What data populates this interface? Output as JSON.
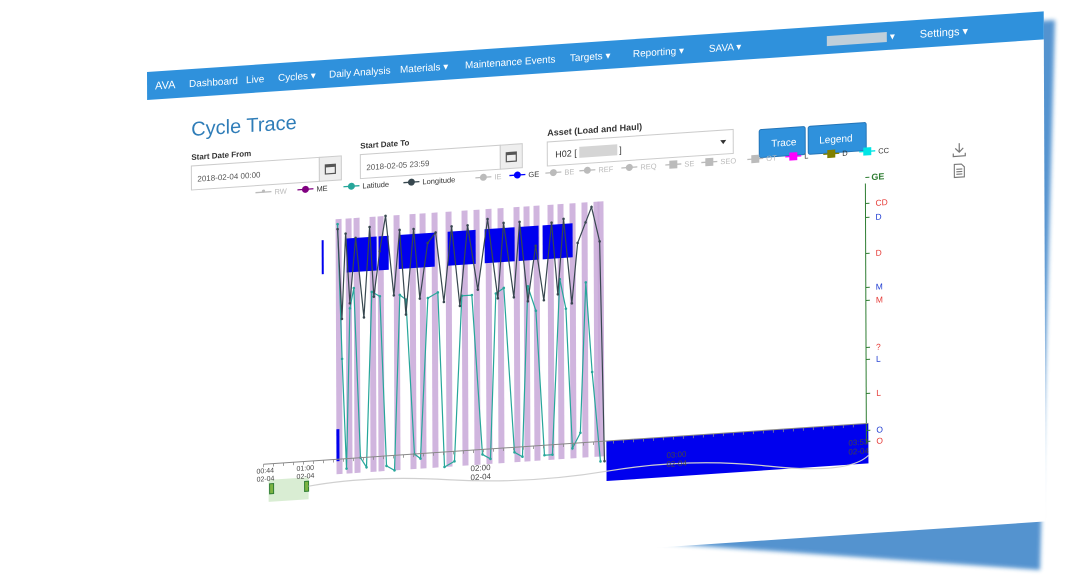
{
  "navbar": {
    "brand": "AVA",
    "items": [
      {
        "label": "Dashboard"
      },
      {
        "label": "Live"
      },
      {
        "label": "Cycles ▾"
      },
      {
        "label": "Daily Analysis"
      },
      {
        "label": "Materials ▾"
      },
      {
        "label": "Maintenance Events"
      },
      {
        "label": "Targets ▾"
      },
      {
        "label": "Reporting ▾"
      },
      {
        "label": "SAVA ▾"
      }
    ],
    "user_caret": "▾",
    "settings": "Settings ▾"
  },
  "page": {
    "title": "Cycle Trace"
  },
  "form": {
    "start_from_label": "Start Date From",
    "start_from_value": "2018-02-04 00:00",
    "start_to_label": "Start Date To",
    "start_to_value": "2018-02-05 23:59",
    "asset_label": "Asset (Load and Haul)",
    "asset_value": "H02 [",
    "asset_value_suffix": "]",
    "trace_button": "Trace",
    "legend_button": "Legend"
  },
  "legend": [
    {
      "label": "RW",
      "color": "#bbbbbb",
      "active": false,
      "marker": "pin"
    },
    {
      "label": "ME",
      "color": "#800080",
      "active": true,
      "marker": "circle"
    },
    {
      "label": "Latitude",
      "color": "#26a69a",
      "active": true,
      "marker": "circle"
    },
    {
      "label": "Longitude",
      "color": "#37474f",
      "active": true,
      "marker": "circle"
    },
    {
      "label": "IE",
      "color": "#bbbbbb",
      "active": false,
      "marker": "circle"
    },
    {
      "label": "GE",
      "color": "#0000ff",
      "active": true,
      "marker": "circle"
    },
    {
      "label": "BE",
      "color": "#bbbbbb",
      "active": false,
      "marker": "circle"
    },
    {
      "label": "REF",
      "color": "#bbbbbb",
      "active": false,
      "marker": "circle"
    },
    {
      "label": "REQ",
      "color": "#bbbbbb",
      "active": false,
      "marker": "circle"
    },
    {
      "label": "SE",
      "color": "#bbbbbb",
      "active": false,
      "marker": "square"
    },
    {
      "label": "SEO",
      "color": "#bbbbbb",
      "active": false,
      "marker": "square"
    },
    {
      "label": "OT",
      "color": "#bbbbbb",
      "active": false,
      "marker": "square"
    },
    {
      "label": "L",
      "color": "#ff00ff",
      "active": true,
      "marker": "square"
    },
    {
      "label": "D",
      "color": "#808000",
      "active": true,
      "marker": "square"
    },
    {
      "label": "CC",
      "color": "#00e5e5",
      "active": true,
      "marker": "square"
    }
  ],
  "right_axis": [
    {
      "label": "GE",
      "color": "#2e7d32"
    },
    {
      "label": "CD",
      "color": "#e53935"
    },
    {
      "label": "D",
      "color": "#1e3bd1"
    },
    {
      "label": "D",
      "color": "#e53935"
    },
    {
      "label": "M",
      "color": "#1e3bd1"
    },
    {
      "label": "M",
      "color": "#e53935"
    },
    {
      "label": "?",
      "color": "#e53935"
    },
    {
      "label": "L",
      "color": "#1e3bd1"
    },
    {
      "label": "L",
      "color": "#e53935"
    },
    {
      "label": "O",
      "color": "#1e3bd1"
    },
    {
      "label": "O",
      "color": "#e53935"
    }
  ],
  "time_axis": [
    {
      "time": "02:00",
      "date": "02-04"
    },
    {
      "time": "03:00",
      "date": "02-04"
    },
    {
      "time": "03:53",
      "date": "02-04"
    }
  ],
  "navigator_axis": [
    {
      "time": "00:44",
      "date": "02-04"
    },
    {
      "time": "01:00",
      "date": "02-04"
    }
  ],
  "icons": {
    "download": "download-icon",
    "document": "document-icon",
    "calendar": "calendar-icon"
  }
}
